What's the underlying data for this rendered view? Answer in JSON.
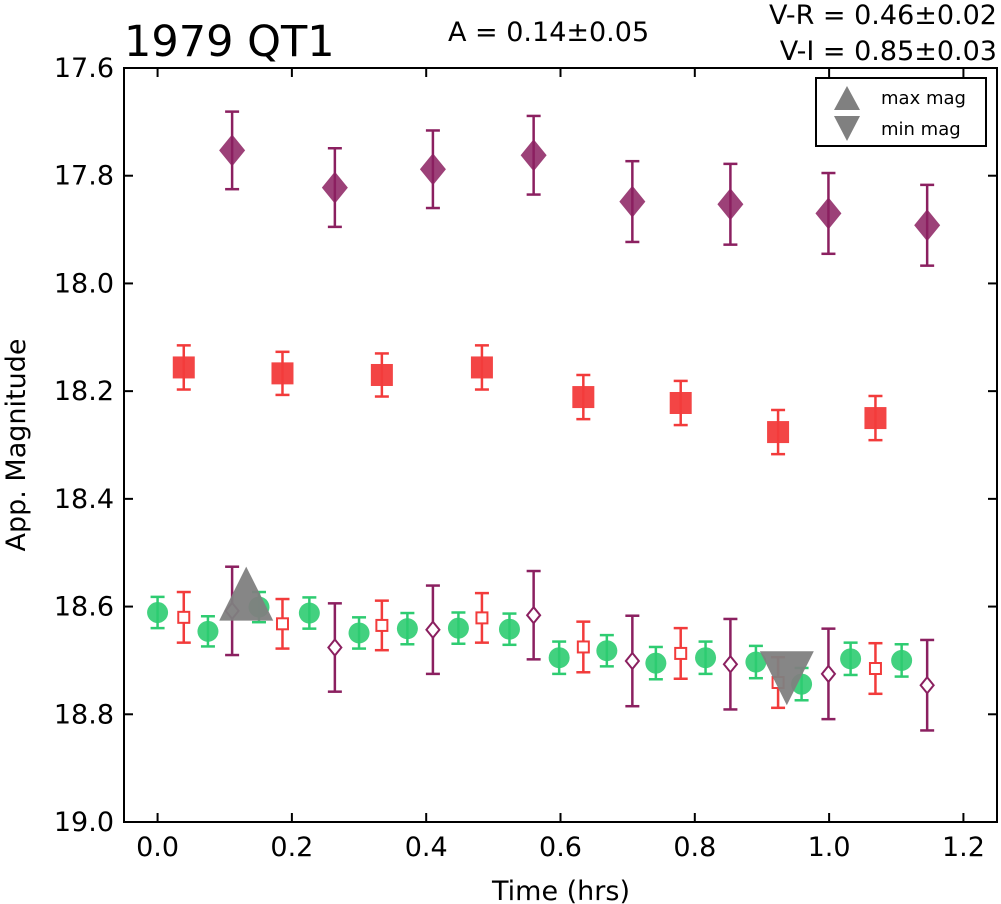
{
  "chart_data": {
    "type": "scatter",
    "title": "1979 QT1",
    "amplitude_label": "A  = 0.14±0.05",
    "color_labels": [
      "V-R = 0.46±0.02",
      "V-I  = 0.85±0.03"
    ],
    "xlabel": "Time (hrs)",
    "ylabel": "App. Magnitude",
    "xlim": [
      -0.05,
      1.25
    ],
    "ylim": [
      19.0,
      17.6
    ],
    "y_inverted": true,
    "xticks": [
      "0.0",
      "0.2",
      "0.4",
      "0.6",
      "0.8",
      "1.0",
      "1.2"
    ],
    "xtick_values": [
      0.0,
      0.2,
      0.4,
      0.6,
      0.8,
      1.0,
      1.2
    ],
    "yticks": [
      "17.6",
      "17.8",
      "18.0",
      "18.2",
      "18.4",
      "18.6",
      "18.8",
      "19.0"
    ],
    "ytick_values": [
      17.6,
      17.8,
      18.0,
      18.2,
      18.4,
      18.6,
      18.8,
      19.0
    ],
    "legend": {
      "position": "top-right",
      "entries": [
        {
          "label": "max mag",
          "marker": "triangle-up"
        },
        {
          "label": "min mag",
          "marker": "triangle-down"
        }
      ]
    },
    "series": [
      {
        "marker": "diamond-filled",
        "color": "#8b2060",
        "x": [
          0.111,
          0.264,
          0.41,
          0.56,
          0.707,
          0.853,
          0.999,
          1.146
        ],
        "y": [
          17.753,
          17.822,
          17.788,
          17.762,
          17.848,
          17.853,
          17.87,
          17.892
        ],
        "err": [
          0.072,
          0.073,
          0.072,
          0.073,
          0.075,
          0.075,
          0.075,
          0.075
        ]
      },
      {
        "marker": "square-filled",
        "color": "#f23b3b",
        "x": [
          0.039,
          0.186,
          0.334,
          0.483,
          0.634,
          0.779,
          0.924,
          1.069
        ],
        "y": [
          18.156,
          18.167,
          18.17,
          18.156,
          18.211,
          18.222,
          18.276,
          18.25
        ],
        "err": [
          0.041,
          0.04,
          0.04,
          0.041,
          0.041,
          0.041,
          0.041,
          0.041
        ]
      },
      {
        "marker": "circle-filled",
        "color": "#2ecc71",
        "x": [
          0.0,
          0.075,
          0.151,
          0.226,
          0.3,
          0.372,
          0.448,
          0.524,
          0.598,
          0.669,
          0.742,
          0.816,
          0.891,
          0.959,
          1.032,
          1.108
        ],
        "y": [
          18.611,
          18.646,
          18.601,
          18.612,
          18.649,
          18.641,
          18.64,
          18.642,
          18.695,
          18.682,
          18.705,
          18.695,
          18.703,
          18.744,
          18.697,
          18.7
        ],
        "err": [
          0.029,
          0.028,
          0.028,
          0.029,
          0.029,
          0.029,
          0.029,
          0.029,
          0.03,
          0.029,
          0.03,
          0.03,
          0.03,
          0.03,
          0.03,
          0.03
        ]
      },
      {
        "marker": "square-open",
        "color": "#f23b3b",
        "x": [
          0.039,
          0.186,
          0.334,
          0.483,
          0.634,
          0.779,
          0.924,
          1.069
        ],
        "y": [
          18.62,
          18.632,
          18.635,
          18.621,
          18.675,
          18.687,
          18.741,
          18.715
        ],
        "err": [
          0.047,
          0.046,
          0.046,
          0.046,
          0.047,
          0.047,
          0.047,
          0.047
        ]
      },
      {
        "marker": "diamond-open",
        "color": "#8b2060",
        "x": [
          0.111,
          0.264,
          0.41,
          0.56,
          0.707,
          0.853,
          0.999,
          1.146
        ],
        "y": [
          18.608,
          18.676,
          18.643,
          18.616,
          18.701,
          18.707,
          18.725,
          18.746
        ],
        "err": [
          0.082,
          0.082,
          0.082,
          0.082,
          0.084,
          0.084,
          0.084,
          0.084
        ]
      }
    ],
    "extrema": [
      {
        "type": "max",
        "x": 0.132,
        "y": 18.6,
        "color": "#808080"
      },
      {
        "type": "min",
        "x": 0.937,
        "y": 18.735,
        "color": "#808080"
      }
    ]
  }
}
